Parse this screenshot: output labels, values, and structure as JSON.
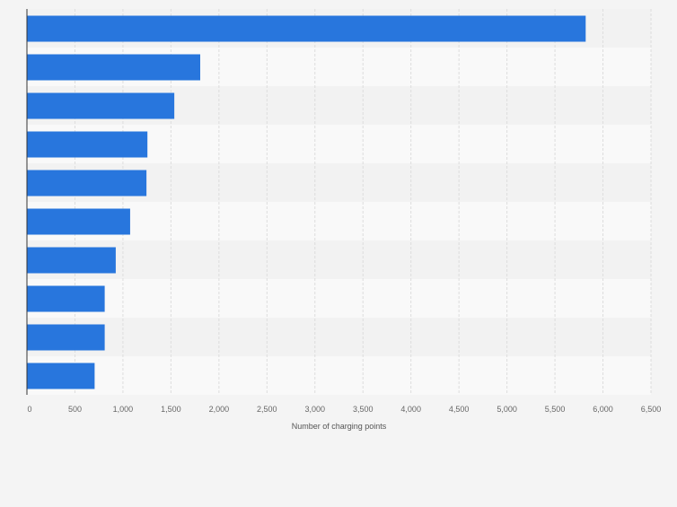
{
  "chart_data": {
    "type": "bar",
    "orientation": "horizontal",
    "title": "",
    "xlabel": "Number of charging points",
    "ylabel": "",
    "categories": [
      "",
      "",
      "",
      "",
      "",
      "",
      "",
      "",
      "",
      ""
    ],
    "series": [
      {
        "values": [
          5820,
          1805,
          1535,
          1255,
          1245,
          1075,
          925,
          810,
          810,
          705
        ]
      }
    ],
    "xlim": [
      0,
      6500
    ],
    "xticks": [
      0,
      500,
      1000,
      1500,
      2000,
      2500,
      3000,
      3500,
      4000,
      4500,
      5000,
      5500,
      6000,
      6500
    ],
    "xtick_labels": [
      "0",
      "500",
      "1,000",
      "1,500",
      "2,000",
      "2,500",
      "3,000",
      "3,500",
      "4,000",
      "4,500",
      "5,000",
      "5,500",
      "6,000",
      "6,500"
    ],
    "grid": true,
    "legend": "none",
    "colors": {
      "bar": "#2876dd",
      "background": "#f4f4f4",
      "plot_band_light": "#f9f9f9",
      "plot_band_dark": "#f2f2f2",
      "grid": "#dddddd",
      "axis": "#333333"
    }
  }
}
